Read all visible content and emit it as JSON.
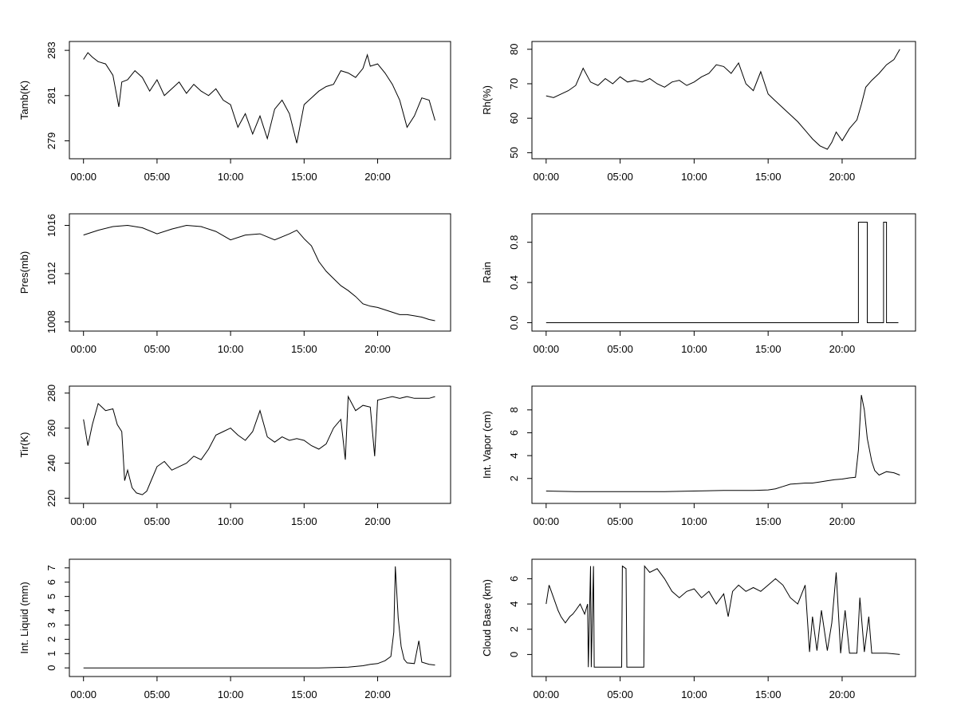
{
  "figure": {
    "background": "#ffffff",
    "line_color": "#000000"
  },
  "chart_data": [
    {
      "type": "line",
      "ylabel": "Tamb(K)",
      "xlim": [
        0,
        24
      ],
      "ylim": [
        278.4,
        283.2
      ],
      "yticks": [
        279,
        281,
        283
      ],
      "xticks": [
        0,
        5,
        10,
        15,
        20
      ],
      "xtick_labels": [
        "00:00",
        "05:00",
        "10:00",
        "15:00",
        "20:00"
      ],
      "grid": false,
      "x": [
        0,
        0.3,
        0.6,
        1,
        1.5,
        2,
        2.4,
        2.6,
        3,
        3.5,
        4,
        4.5,
        5,
        5.5,
        6,
        6.5,
        7,
        7.5,
        8,
        8.5,
        9,
        9.5,
        10,
        10.5,
        11,
        11.5,
        12,
        12.5,
        13,
        13.5,
        14,
        14.5,
        15,
        15.5,
        16,
        16.5,
        17,
        17.5,
        18,
        18.5,
        19,
        19.3,
        19.5,
        20,
        20.5,
        21,
        21.5,
        22,
        22.5,
        23,
        23.5,
        23.9
      ],
      "values": [
        282.6,
        282.9,
        282.7,
        282.5,
        282.4,
        281.9,
        280.5,
        281.6,
        281.7,
        282.1,
        281.8,
        281.2,
        281.7,
        281.0,
        281.3,
        281.6,
        281.1,
        281.5,
        281.2,
        281.0,
        281.3,
        280.8,
        280.6,
        279.6,
        280.2,
        279.3,
        280.1,
        279.1,
        280.4,
        280.8,
        280.2,
        278.9,
        280.6,
        280.9,
        281.2,
        281.4,
        281.5,
        282.1,
        282.0,
        281.8,
        282.2,
        282.8,
        282.3,
        282.4,
        282.0,
        281.5,
        280.8,
        279.6,
        280.1,
        280.9,
        280.8,
        279.9
      ]
    },
    {
      "type": "line",
      "ylabel": "Rh(%)",
      "xlim": [
        0,
        24
      ],
      "ylim": [
        49.5,
        81
      ],
      "yticks": [
        50,
        60,
        70,
        80
      ],
      "xticks": [
        0,
        5,
        10,
        15,
        20
      ],
      "xtick_labels": [
        "00:00",
        "05:00",
        "10:00",
        "15:00",
        "20:00"
      ],
      "grid": false,
      "x": [
        0,
        0.5,
        1,
        1.5,
        2,
        2.5,
        3,
        3.5,
        4,
        4.5,
        5,
        5.5,
        6,
        6.5,
        7,
        7.5,
        8,
        8.5,
        9,
        9.5,
        10,
        10.5,
        11,
        11.5,
        12,
        12.5,
        13,
        13.5,
        14,
        14.5,
        15,
        15.5,
        16,
        16.5,
        17,
        17.5,
        18,
        18.5,
        19,
        19.3,
        19.6,
        20,
        20.5,
        21,
        21.3,
        21.6,
        22,
        22.5,
        23,
        23.5,
        23.9
      ],
      "values": [
        66.5,
        66.0,
        67.0,
        68.0,
        69.5,
        74.5,
        70.5,
        69.5,
        71.5,
        70.0,
        72.0,
        70.5,
        71.0,
        70.5,
        71.5,
        70.0,
        69.0,
        70.5,
        71.0,
        69.5,
        70.5,
        72.0,
        73.0,
        75.5,
        75.0,
        73.0,
        76.0,
        70.0,
        68.0,
        73.5,
        67.0,
        65.0,
        63.0,
        61.0,
        59.0,
        56.5,
        54.0,
        52.0,
        51.0,
        53.0,
        56.0,
        53.5,
        57.0,
        59.5,
        64.0,
        69.0,
        71.0,
        73.0,
        75.5,
        77.0,
        80.0
      ]
    },
    {
      "type": "line",
      "ylabel": "Pres(mb)",
      "xlim": [
        0,
        24
      ],
      "ylim": [
        1007.6,
        1016.6
      ],
      "yticks": [
        1008,
        1012,
        1016
      ],
      "xticks": [
        0,
        5,
        10,
        15,
        20
      ],
      "xtick_labels": [
        "00:00",
        "05:00",
        "10:00",
        "15:00",
        "20:00"
      ],
      "grid": false,
      "x": [
        0,
        1,
        2,
        3,
        4,
        5,
        6,
        7,
        8,
        9,
        10,
        11,
        12,
        13,
        14,
        14.5,
        15,
        15.5,
        16,
        16.5,
        17,
        17.5,
        18,
        18.5,
        19,
        19.5,
        20,
        20.5,
        21,
        21.5,
        22,
        22.5,
        23,
        23.5,
        23.9
      ],
      "values": [
        1015.2,
        1015.6,
        1015.9,
        1016.0,
        1015.8,
        1015.3,
        1015.7,
        1016.0,
        1015.9,
        1015.5,
        1014.8,
        1015.2,
        1015.3,
        1014.8,
        1015.3,
        1015.6,
        1014.9,
        1014.3,
        1013.0,
        1012.2,
        1011.6,
        1011.0,
        1010.6,
        1010.1,
        1009.5,
        1009.3,
        1009.2,
        1009.0,
        1008.8,
        1008.6,
        1008.6,
        1008.5,
        1008.4,
        1008.2,
        1008.1
      ]
    },
    {
      "type": "line",
      "ylabel": "Rain",
      "xlim": [
        0,
        24
      ],
      "ylim": [
        -0.04,
        1.04
      ],
      "yticks": [
        0.0,
        0.4,
        0.8
      ],
      "ytick_labels": [
        "0.0",
        "0.4",
        "0.8"
      ],
      "xticks": [
        0,
        5,
        10,
        15,
        20
      ],
      "xtick_labels": [
        "00:00",
        "05:00",
        "10:00",
        "15:00",
        "20:00"
      ],
      "grid": false,
      "x": [
        0,
        21.1,
        21.1,
        21.7,
        21.7,
        22.8,
        22.8,
        23.0,
        23.0,
        23.8
      ],
      "values": [
        0,
        0,
        1,
        1,
        0,
        0,
        1,
        1,
        0,
        0
      ]
    },
    {
      "type": "line",
      "ylabel": "Tir(K)",
      "xlim": [
        0,
        24
      ],
      "ylim": [
        219.5,
        281.5
      ],
      "yticks": [
        220,
        240,
        260,
        280
      ],
      "xticks": [
        0,
        5,
        10,
        15,
        20
      ],
      "xtick_labels": [
        "00:00",
        "05:00",
        "10:00",
        "15:00",
        "20:00"
      ],
      "grid": false,
      "x": [
        0,
        0.3,
        0.6,
        1,
        1.5,
        2,
        2.3,
        2.6,
        2.8,
        3,
        3.3,
        3.6,
        4,
        4.3,
        4.6,
        5,
        5.5,
        6,
        6.5,
        7,
        7.5,
        8,
        8.5,
        9,
        9.5,
        10,
        10.5,
        11,
        11.5,
        12,
        12.5,
        13,
        13.5,
        14,
        14.5,
        15,
        15.5,
        16,
        16.5,
        17,
        17.5,
        17.8,
        18,
        18.5,
        19,
        19.5,
        19.8,
        20,
        20.5,
        21,
        21.5,
        22,
        22.5,
        23,
        23.5,
        23.9
      ],
      "values": [
        265,
        250,
        262,
        274,
        270,
        271,
        262,
        258,
        230,
        236,
        226,
        223,
        222,
        224,
        230,
        238,
        241,
        236,
        238,
        240,
        244,
        242,
        248,
        256,
        258,
        260,
        256,
        253,
        258,
        270,
        255,
        252,
        255,
        253,
        254,
        253,
        250,
        248,
        251,
        260,
        265,
        242,
        278,
        270,
        273,
        272,
        244,
        276,
        277,
        278,
        277,
        278,
        277,
        277,
        277,
        278
      ]
    },
    {
      "type": "line",
      "ylabel": "Int. Vapor (cm)",
      "xlim": [
        0,
        24
      ],
      "ylim": [
        0.2,
        9.7
      ],
      "yticks": [
        2,
        4,
        6,
        8
      ],
      "xticks": [
        0,
        5,
        10,
        15,
        20
      ],
      "xtick_labels": [
        "00:00",
        "05:00",
        "10:00",
        "15:00",
        "20:00"
      ],
      "grid": false,
      "x": [
        0,
        2,
        4,
        6,
        8,
        10,
        12,
        14,
        15,
        15.5,
        16,
        16.5,
        17,
        17.5,
        18,
        18.5,
        19,
        19.5,
        20,
        20.5,
        20.9,
        21.1,
        21.3,
        21.5,
        21.7,
        22,
        22.2,
        22.5,
        23,
        23.5,
        23.9
      ],
      "values": [
        0.9,
        0.85,
        0.85,
        0.85,
        0.85,
        0.9,
        0.95,
        0.95,
        1.0,
        1.1,
        1.3,
        1.5,
        1.55,
        1.6,
        1.6,
        1.7,
        1.8,
        1.9,
        1.95,
        2.05,
        2.1,
        4.5,
        9.3,
        8.0,
        5.5,
        3.5,
        2.7,
        2.3,
        2.6,
        2.5,
        2.3
      ]
    },
    {
      "type": "line",
      "ylabel": "Int. Liquid (mm)",
      "xlim": [
        0,
        24
      ],
      "ylim": [
        -0.3,
        7.3
      ],
      "yticks": [
        0,
        1,
        2,
        3,
        4,
        5,
        6,
        7
      ],
      "xticks": [
        0,
        5,
        10,
        15,
        20
      ],
      "xtick_labels": [
        "00:00",
        "05:00",
        "10:00",
        "15:00",
        "20:00"
      ],
      "grid": false,
      "x": [
        0,
        2,
        5,
        10,
        15,
        16,
        17,
        18,
        18.5,
        19,
        19.5,
        20,
        20.5,
        20.9,
        21.1,
        21.2,
        21.4,
        21.6,
        21.8,
        22,
        22.5,
        22.8,
        23,
        23.5,
        23.9
      ],
      "values": [
        0,
        0,
        0,
        0,
        0,
        0,
        0.02,
        0.05,
        0.1,
        0.15,
        0.25,
        0.3,
        0.5,
        0.8,
        2.5,
        7.1,
        3.5,
        1.5,
        0.6,
        0.35,
        0.3,
        1.9,
        0.4,
        0.25,
        0.2
      ]
    },
    {
      "type": "line",
      "ylabel": "Cloud Base (km)",
      "xlim": [
        0,
        24
      ],
      "ylim": [
        -1.4,
        7.2
      ],
      "yticks": [
        0,
        2,
        4,
        6
      ],
      "xticks": [
        0,
        5,
        10,
        15,
        20
      ],
      "xtick_labels": [
        "00:00",
        "05:00",
        "10:00",
        "15:00",
        "20:00"
      ],
      "grid": false,
      "x": [
        0,
        0.2,
        0.5,
        0.8,
        1,
        1.3,
        1.6,
        1.8,
        2,
        2.3,
        2.6,
        2.8,
        2.85,
        3,
        3.05,
        3.2,
        3.25,
        3.5,
        5.1,
        5.15,
        5.4,
        5.45,
        6.6,
        6.65,
        7,
        7.5,
        8,
        8.5,
        9,
        9.5,
        10,
        10.5,
        11,
        11.5,
        12,
        12.3,
        12.6,
        13,
        13.5,
        14,
        14.5,
        15,
        15.5,
        16,
        16.5,
        17,
        17.5,
        17.8,
        18,
        18.3,
        18.6,
        19,
        19.3,
        19.6,
        19.9,
        20.2,
        20.5,
        21,
        21.2,
        21.5,
        21.8,
        22,
        22.5,
        23,
        23.5,
        23.9
      ],
      "values": [
        4.0,
        5.5,
        4.5,
        3.5,
        3.0,
        2.5,
        3.0,
        3.2,
        3.5,
        4.0,
        3.2,
        4.0,
        -1.0,
        7.0,
        -1.0,
        7.0,
        -1.0,
        -1.0,
        -1.0,
        7.0,
        6.8,
        -1.0,
        -1.0,
        7.0,
        6.5,
        6.8,
        6.0,
        5.0,
        4.5,
        5.0,
        5.2,
        4.5,
        5.0,
        4.0,
        4.8,
        3.0,
        5.0,
        5.5,
        5.0,
        5.3,
        5.0,
        5.5,
        6.0,
        5.5,
        4.5,
        4.0,
        5.5,
        0.2,
        3.0,
        0.3,
        3.5,
        0.3,
        2.5,
        6.5,
        0.1,
        3.5,
        0.1,
        0.1,
        4.5,
        0.2,
        3.0,
        0.1,
        0.1,
        0.1,
        0.05,
        0.0
      ]
    }
  ]
}
